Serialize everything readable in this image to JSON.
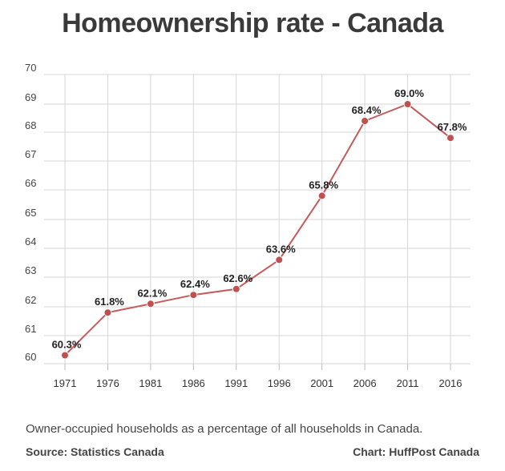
{
  "chart_data": {
    "type": "line",
    "title": "Homeownership rate - Canada",
    "x": [
      "1971",
      "1976",
      "1981",
      "1986",
      "1991",
      "1996",
      "2001",
      "2006",
      "2011",
      "2016"
    ],
    "series": [
      {
        "values": [
          60.3,
          61.8,
          62.1,
          62.4,
          62.6,
          63.6,
          65.8,
          68.4,
          69.0,
          67.8
        ],
        "labels": [
          "60.3%",
          "61.8%",
          "62.1%",
          "62.4%",
          "62.6%",
          "63.6%",
          "65.8%",
          "68.4%",
          "69.0%",
          "67.8%"
        ]
      }
    ],
    "y_ticks": [
      "60",
      "61",
      "62",
      "63",
      "64",
      "65",
      "66",
      "67",
      "68",
      "69",
      "70"
    ],
    "grid": true,
    "legend": "none",
    "line_color": "#c55a5a",
    "marker_color": "#c0504d"
  },
  "caption": "Owner-occupied households as a percentage of all households in Canada.",
  "source": "Source: Statistics Canada",
  "credit": "Chart: HuffPost Canada"
}
